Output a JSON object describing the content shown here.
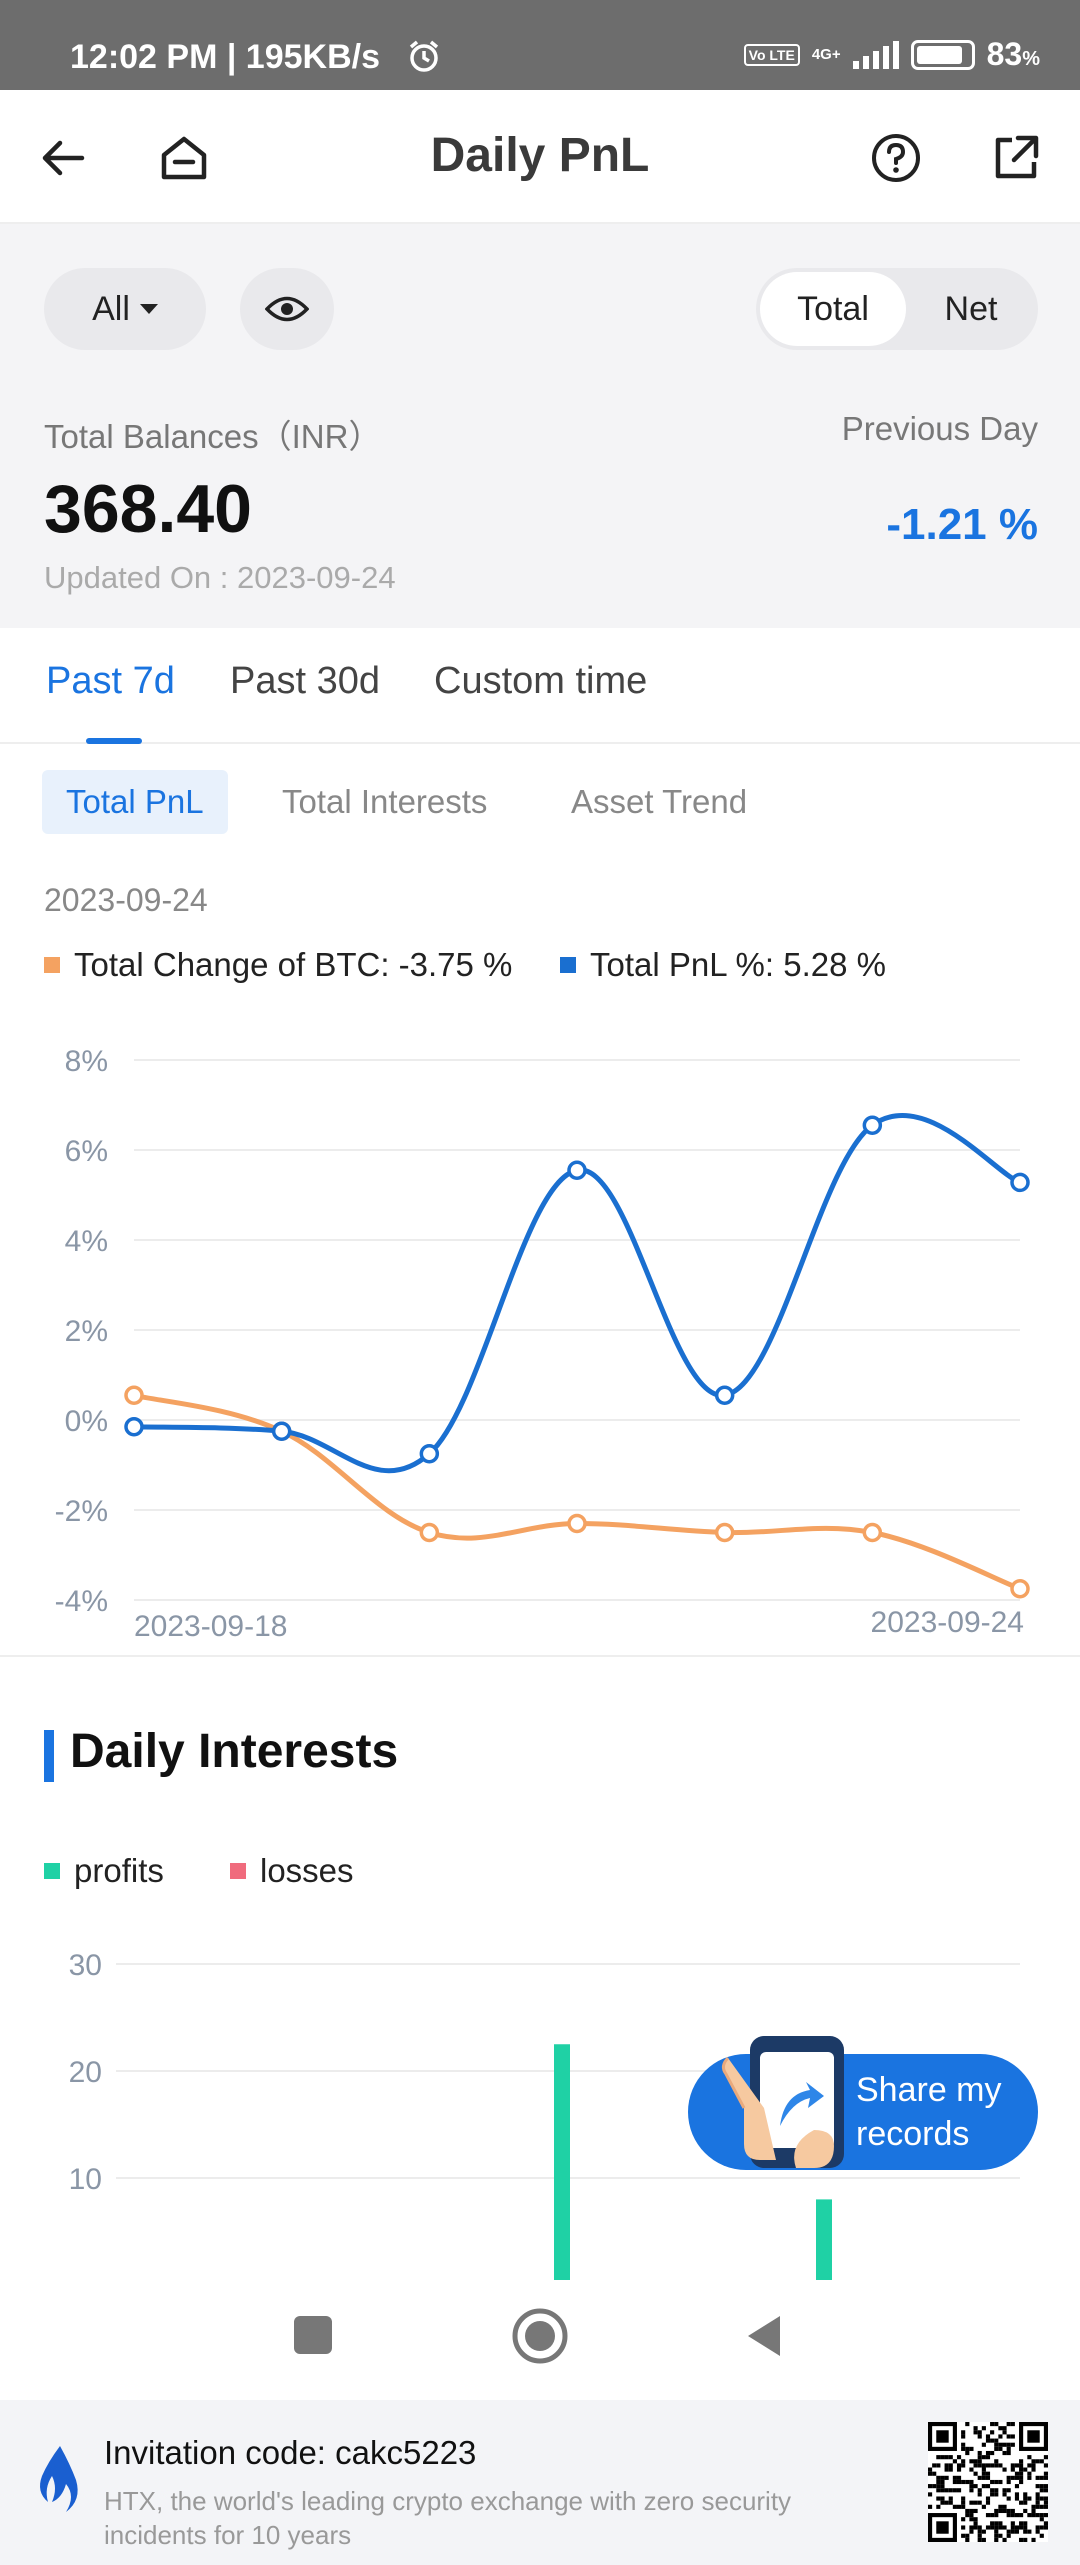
{
  "status_bar": {
    "time_speed": "12:02 PM | 195KB/s",
    "network_tag": "Vo LTE",
    "network_type": "4G+",
    "battery": "83",
    "battery_unit": "%"
  },
  "header": {
    "title": "Daily PnL",
    "icons": [
      "back-arrow-icon",
      "home-icon",
      "help-icon",
      "share-out-icon"
    ]
  },
  "summary": {
    "filter_label": "All",
    "toggle_total": "Total",
    "toggle_net": "Net",
    "balance_label": "Total Balances（INR）",
    "balance_value": "368.40",
    "updated": "Updated On : 2023-09-24",
    "previous_label": "Previous Day",
    "previous_value": "-1.21 %"
  },
  "period_tabs": [
    "Past 7d",
    "Past 30d",
    "Custom time"
  ],
  "sub_tabs": [
    "Total PnL",
    "Total Interests",
    "Asset Trend"
  ],
  "pnl_chart": {
    "date": "2023-09-24",
    "legend_btc": "Total Change of BTC: -3.75 %",
    "legend_pnl": "Total PnL %: 5.28 %"
  },
  "daily_interests": {
    "title": "Daily Interests",
    "legend_profits": "profits",
    "legend_losses": "losses"
  },
  "share": {
    "label_line1": "Share my",
    "label_line2": "records"
  },
  "footer": {
    "invitation": "Invitation code: cakc5223",
    "description": "HTX, the world's leading crypto exchange with zero security incidents for 10 years"
  },
  "colors": {
    "accent": "#1a74e0",
    "btc_series": "#f4a261",
    "pnl_series": "#1a6fd0",
    "profits": "#1fd1a5",
    "losses": "#f06b7d"
  },
  "chart_data": [
    {
      "type": "line",
      "x": [
        "2023-09-18",
        "2023-09-19",
        "2023-09-20",
        "2023-09-21",
        "2023-09-22",
        "2023-09-23",
        "2023-09-24"
      ],
      "x_tick_labels": [
        "2023-09-18",
        "2023-09-24"
      ],
      "y_tick_labels": [
        "8%",
        "6%",
        "4%",
        "2%",
        "0%",
        "-2%",
        "-4%"
      ],
      "ylim": [
        -4,
        8
      ],
      "series": [
        {
          "name": "Total Change of BTC",
          "color": "#f4a261",
          "values": [
            0.55,
            -0.25,
            -2.5,
            -2.3,
            -2.5,
            -2.5,
            -3.75
          ]
        },
        {
          "name": "Total PnL %",
          "color": "#1a6fd0",
          "values": [
            -0.15,
            -0.25,
            -0.75,
            5.55,
            0.55,
            6.55,
            5.28
          ]
        }
      ],
      "grid": true
    },
    {
      "type": "bar",
      "y_tick_labels": [
        "30",
        "20",
        "10"
      ],
      "ylim": [
        0,
        30
      ],
      "series": [
        {
          "name": "profits",
          "color": "#1fd1a5",
          "values": [
            0,
            0,
            0,
            22.5,
            0,
            8,
            0
          ]
        },
        {
          "name": "losses",
          "color": "#f06b7d",
          "values": [
            0,
            0,
            0,
            0,
            0,
            0,
            0
          ]
        }
      ]
    }
  ]
}
